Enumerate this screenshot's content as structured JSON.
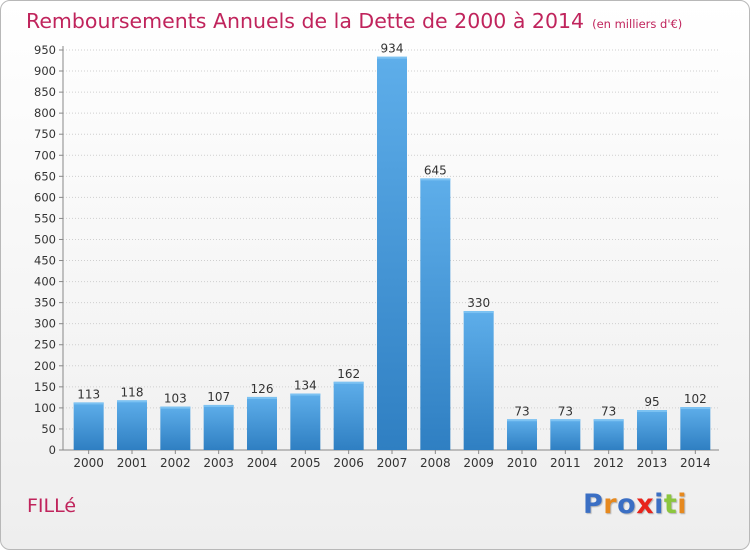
{
  "title": "Remboursements Annuels de la Dette de 2000 à 2014",
  "unit": "(en milliers d'€)",
  "city": "FILLé",
  "logo": {
    "text": "Proxiti",
    "letter_colors": [
      "#3b6fc4",
      "#e6891f",
      "#3b6fc4",
      "#e8241c",
      "#3b6fc4",
      "#8cc63e",
      "#e6891f"
    ]
  },
  "colors": {
    "bar_light": "#5eaeea",
    "bar_dark": "#2f7fc2",
    "title": "#c0245c"
  },
  "chart_data": {
    "type": "bar",
    "title": "Remboursements Annuels de la Dette de 2000 à 2014",
    "categories": [
      "2000",
      "2001",
      "2002",
      "2003",
      "2004",
      "2005",
      "2006",
      "2007",
      "2008",
      "2009",
      "2010",
      "2011",
      "2012",
      "2013",
      "2014"
    ],
    "values": [
      113,
      118,
      103,
      107,
      126,
      134,
      162,
      934,
      645,
      330,
      73,
      73,
      73,
      95,
      102
    ],
    "ylim": [
      0,
      950
    ],
    "yticks": [
      0,
      50,
      100,
      150,
      200,
      250,
      300,
      350,
      400,
      450,
      500,
      550,
      600,
      650,
      700,
      750,
      800,
      850,
      900,
      950
    ],
    "grid": true
  }
}
